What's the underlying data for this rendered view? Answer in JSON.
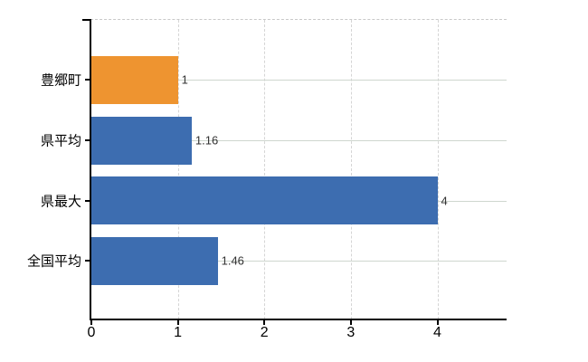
{
  "chart": {
    "background": "#ffffff",
    "axis_color": "#000000",
    "horizontal_grid_color": "#cfd6cf",
    "vertical_grid_color": "#d5d5d5",
    "top_border_color": "#c9c9c9",
    "category_text_color": "#000000",
    "value_text_color": "#333333",
    "highlight_color": "#ee9430",
    "series_color": "#3d6db0"
  },
  "chart_data": {
    "type": "bar",
    "orientation": "horizontal",
    "title": "",
    "xlabel": "",
    "ylabel": "",
    "categories": [
      "豊郷町",
      "県平均",
      "県最大",
      "全国平均"
    ],
    "values": [
      1,
      1.16,
      4,
      1.46
    ],
    "value_labels": [
      "1",
      "1.16",
      "4",
      "1.46"
    ],
    "bar_colors": [
      "#ee9430",
      "#3d6db0",
      "#3d6db0",
      "#3d6db0"
    ],
    "xlim": [
      0,
      4.8
    ],
    "x_ticks": [
      "0",
      "1",
      "2",
      "3",
      "4"
    ],
    "x_tick_values": [
      0,
      1,
      2,
      3,
      4
    ],
    "grid": true,
    "legend": false
  }
}
